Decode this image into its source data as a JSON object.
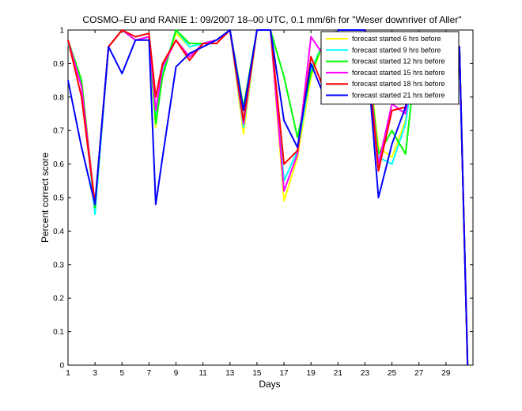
{
  "chart_data": {
    "type": "line",
    "title": "COSMO–EU and RANIE 1: 09/2007 18–00 UTC, 0.1 mm/6h for \"Weser downriver of Aller\"",
    "xlabel": "Days",
    "ylabel": "Percent correct score",
    "xlim": [
      1,
      31
    ],
    "ylim": [
      0,
      1
    ],
    "x_ticks": [
      1,
      3,
      5,
      7,
      9,
      11,
      13,
      15,
      17,
      19,
      21,
      23,
      25,
      27,
      29
    ],
    "y_ticks": [
      0,
      0.1,
      0.2,
      0.3,
      0.4,
      0.5,
      0.6,
      0.7,
      0.8,
      0.9,
      1
    ],
    "grid": false,
    "legend_position": "top-right",
    "x": [
      1,
      2,
      3,
      4,
      5,
      6,
      7,
      7.5,
      8,
      9,
      10,
      11,
      12,
      13,
      14,
      15,
      16,
      17,
      18,
      19,
      20,
      21,
      22,
      23,
      24,
      25,
      26,
      27,
      28,
      29,
      30,
      30.6
    ],
    "series": [
      {
        "name": "forecast started 6 hrs before",
        "color": "#ffff00",
        "values": [
          0.97,
          0.85,
          0.48,
          0.95,
          1.0,
          0.97,
          0.98,
          0.71,
          0.88,
          0.99,
          0.95,
          0.96,
          0.97,
          1.0,
          0.69,
          1.0,
          1.0,
          0.49,
          0.62,
          0.86,
          0.97,
          1.0,
          1.0,
          1.0,
          0.65,
          0.62,
          0.73,
          0.99,
          0.99,
          0.95,
          0.95,
          0
        ]
      },
      {
        "name": "forecast started 9 hrs before",
        "color": "#00ffff",
        "values": [
          0.96,
          0.84,
          0.45,
          0.95,
          1.0,
          0.97,
          0.98,
          0.74,
          0.87,
          1.0,
          0.95,
          0.96,
          0.97,
          1.0,
          0.71,
          1.0,
          1.0,
          0.55,
          0.64,
          0.88,
          0.97,
          1.0,
          1.0,
          1.0,
          0.62,
          0.6,
          0.72,
          0.99,
          0.99,
          0.95,
          0.95,
          0
        ]
      },
      {
        "name": "forecast started 12 hrs before",
        "color": "#00ff00",
        "values": [
          0.97,
          0.85,
          0.47,
          0.95,
          1.0,
          0.97,
          0.98,
          0.72,
          0.86,
          1.0,
          0.96,
          0.96,
          0.97,
          1.0,
          0.77,
          1.0,
          1.0,
          0.86,
          0.68,
          0.87,
          0.97,
          1.0,
          1.0,
          1.0,
          0.63,
          0.7,
          0.63,
          0.99,
          0.99,
          0.95,
          0.95,
          0
        ]
      },
      {
        "name": "forecast started 15 hrs before",
        "color": "#ff00ff",
        "values": [
          0.97,
          0.83,
          0.48,
          0.95,
          1.0,
          0.97,
          0.98,
          0.76,
          0.89,
          0.97,
          0.92,
          0.96,
          0.97,
          1.0,
          0.72,
          1.0,
          1.0,
          0.52,
          0.63,
          0.98,
          0.92,
          1.0,
          1.0,
          1.0,
          0.6,
          0.78,
          0.75,
          0.99,
          0.99,
          0.95,
          0.95,
          0
        ]
      },
      {
        "name": "forecast started 18 hrs before",
        "color": "#ff0000",
        "values": [
          0.97,
          0.8,
          0.48,
          0.95,
          1.0,
          0.98,
          0.99,
          0.8,
          0.9,
          0.97,
          0.91,
          0.96,
          0.96,
          1.0,
          0.73,
          1.0,
          1.0,
          0.6,
          0.64,
          0.92,
          0.82,
          1.0,
          1.0,
          1.0,
          0.58,
          0.76,
          0.77,
          0.99,
          0.99,
          0.95,
          0.95,
          0
        ]
      },
      {
        "name": "forecast started 21 hrs before",
        "color": "#0000ff",
        "values": [
          0.85,
          0.65,
          0.48,
          0.95,
          0.87,
          0.97,
          0.97,
          0.48,
          0.62,
          0.89,
          0.93,
          0.95,
          0.97,
          1.0,
          0.76,
          1.0,
          1.0,
          0.73,
          0.65,
          0.9,
          0.8,
          1.0,
          1.0,
          1.0,
          0.5,
          0.66,
          0.77,
          0.98,
          0.82,
          0.95,
          0.95,
          0
        ]
      }
    ]
  }
}
